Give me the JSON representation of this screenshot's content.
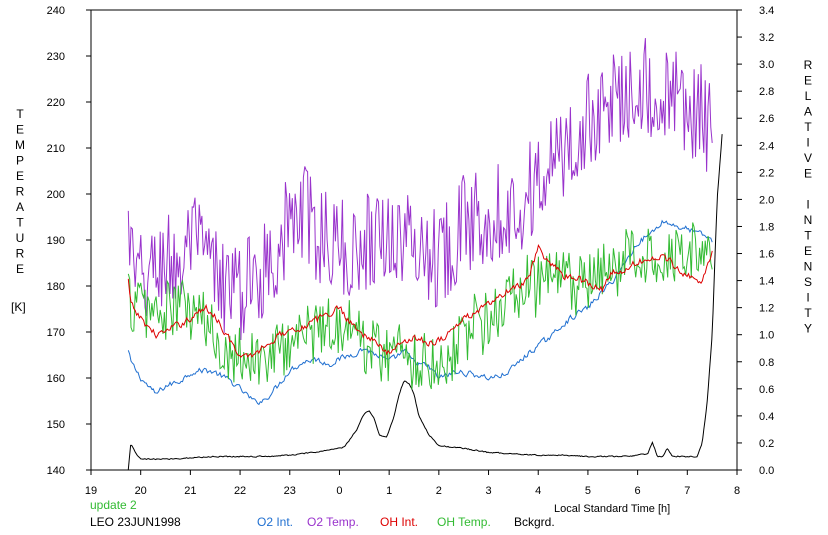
{
  "chart_data": {
    "type": "line",
    "xlabel": "Local Standard Time [h]",
    "ylabel_left": "TEMPERATURE",
    "ylabel_left_unit": "[K]",
    "ylabel_right": "RELATIVE INTENSITY",
    "x_range": [
      19,
      32
    ],
    "x_tick_values": [
      19,
      20,
      21,
      22,
      23,
      24,
      25,
      26,
      27,
      28,
      29,
      30,
      31,
      32
    ],
    "x_tick_labels": [
      "19",
      "20",
      "21",
      "22",
      "23",
      "0",
      "1",
      "2",
      "3",
      "4",
      "5",
      "6",
      "7",
      "8"
    ],
    "ylim_left": [
      140,
      240
    ],
    "y_left_ticks": [
      "140",
      "150",
      "160",
      "170",
      "180",
      "190",
      "200",
      "210",
      "220",
      "230",
      "240"
    ],
    "ylim_right": [
      0,
      3.4
    ],
    "y_right_ticks": [
      "0.0",
      "0.2",
      "0.4",
      "0.6",
      "0.8",
      "1.0",
      "1.2",
      "1.4",
      "1.6",
      "1.8",
      "2.0",
      "2.2",
      "2.4",
      "2.6",
      "2.8",
      "3.0",
      "3.2",
      "3.4"
    ],
    "grid": false,
    "series": [
      {
        "name": "O2 Int.",
        "color": "#1f6fd0",
        "axis": "right",
        "noise": 0.02,
        "x": [
          19.75,
          19.8,
          20.0,
          20.3,
          20.5,
          20.8,
          21.0,
          21.3,
          21.5,
          21.8,
          22.0,
          22.3,
          22.5,
          22.8,
          23.0,
          23.3,
          23.5,
          23.8,
          24.0,
          24.3,
          24.5,
          24.8,
          25.0,
          25.3,
          25.5,
          25.8,
          26.0,
          26.3,
          26.5,
          26.8,
          27.0,
          27.3,
          27.5,
          27.8,
          28.0,
          28.3,
          28.5,
          28.8,
          29.0,
          29.3,
          29.5,
          29.8,
          30.0,
          30.3,
          30.5,
          30.8,
          31.0,
          31.3,
          31.5
        ],
        "y": [
          0.88,
          0.8,
          0.68,
          0.56,
          0.62,
          0.66,
          0.72,
          0.74,
          0.72,
          0.66,
          0.6,
          0.5,
          0.52,
          0.64,
          0.74,
          0.8,
          0.82,
          0.78,
          0.82,
          0.86,
          0.9,
          0.84,
          0.8,
          0.88,
          0.8,
          0.76,
          0.68,
          0.72,
          0.72,
          0.7,
          0.68,
          0.7,
          0.76,
          0.86,
          0.92,
          1.0,
          1.08,
          1.16,
          1.2,
          1.32,
          1.4,
          1.56,
          1.68,
          1.76,
          1.84,
          1.8,
          1.78,
          1.74,
          1.7
        ]
      },
      {
        "name": "O2 Temp.",
        "color": "#9933cc",
        "axis": "left",
        "noise": 7,
        "x": [
          19.75,
          19.9,
          20.2,
          20.5,
          20.8,
          21.0,
          21.3,
          21.5,
          21.8,
          22.0,
          22.3,
          22.5,
          22.8,
          23.0,
          23.3,
          23.5,
          23.8,
          24.0,
          24.3,
          24.5,
          24.8,
          25.0,
          25.3,
          25.5,
          25.8,
          26.0,
          26.3,
          26.5,
          26.8,
          27.0,
          27.3,
          27.5,
          27.8,
          28.0,
          28.3,
          28.5,
          28.8,
          29.0,
          29.3,
          29.5,
          29.8,
          30.0,
          30.3,
          30.5,
          30.8,
          31.0,
          31.3,
          31.5
        ],
        "y": [
          192,
          180,
          182,
          186,
          184,
          190,
          186,
          182,
          180,
          178,
          182,
          184,
          190,
          193,
          196,
          192,
          190,
          188,
          186,
          190,
          192,
          191,
          190,
          189,
          188,
          186,
          191,
          193,
          195,
          196,
          197,
          196,
          200,
          203,
          206,
          209,
          212,
          215,
          219,
          220,
          223,
          226,
          221,
          221,
          220,
          219,
          217,
          212
        ]
      },
      {
        "name": "OH Int.",
        "color": "#dd0000",
        "axis": "right",
        "noise": 0.025,
        "x": [
          19.75,
          19.8,
          20.0,
          20.3,
          20.5,
          20.8,
          21.0,
          21.3,
          21.5,
          21.8,
          22.0,
          22.3,
          22.5,
          22.8,
          23.0,
          23.3,
          23.5,
          23.8,
          24.0,
          24.3,
          24.5,
          24.8,
          25.0,
          25.3,
          25.5,
          25.8,
          26.0,
          26.3,
          26.5,
          26.8,
          27.0,
          27.3,
          27.5,
          27.8,
          28.0,
          28.3,
          28.5,
          28.8,
          29.0,
          29.3,
          29.5,
          29.8,
          30.0,
          30.3,
          30.5,
          30.8,
          31.0,
          31.3,
          31.5
        ],
        "y": [
          1.4,
          1.22,
          1.12,
          1.0,
          1.02,
          1.08,
          1.12,
          1.2,
          1.14,
          0.96,
          0.82,
          0.86,
          0.92,
          1.0,
          1.04,
          1.06,
          1.1,
          1.16,
          1.2,
          1.06,
          1.0,
          0.92,
          0.86,
          0.96,
          0.98,
          0.94,
          0.96,
          1.04,
          1.12,
          1.18,
          1.22,
          1.3,
          1.34,
          1.4,
          1.64,
          1.5,
          1.44,
          1.42,
          1.38,
          1.34,
          1.46,
          1.48,
          1.54,
          1.56,
          1.58,
          1.5,
          1.44,
          1.4,
          1.6
        ]
      },
      {
        "name": "OH Temp.",
        "color": "#33bb33",
        "axis": "left",
        "noise": 5,
        "x": [
          19.75,
          19.8,
          20.0,
          20.3,
          20.5,
          20.8,
          21.0,
          21.3,
          21.5,
          21.8,
          22.0,
          22.3,
          22.5,
          22.8,
          23.0,
          23.3,
          23.5,
          23.8,
          24.0,
          24.3,
          24.5,
          24.8,
          25.0,
          25.3,
          25.5,
          25.8,
          26.0,
          26.3,
          26.5,
          26.8,
          27.0,
          27.3,
          27.5,
          27.8,
          28.0,
          28.3,
          28.5,
          28.8,
          29.0,
          29.3,
          29.5,
          29.8,
          30.0,
          30.3,
          30.5,
          30.8,
          31.0,
          31.3,
          31.5
        ],
        "y": [
          178,
          176,
          176,
          174,
          174,
          176,
          174,
          172,
          168,
          166,
          166,
          164,
          164,
          166,
          168,
          170,
          170,
          172,
          172,
          170,
          168,
          166,
          166,
          166,
          164,
          164,
          163,
          166,
          170,
          172,
          172,
          176,
          178,
          180,
          180,
          182,
          181,
          180,
          180,
          182,
          184,
          186,
          187,
          186,
          188,
          188,
          188,
          187,
          186
        ]
      },
      {
        "name": "Bckgrd.",
        "color": "#000000",
        "axis": "right",
        "noise": 0.004,
        "x": [
          19.75,
          19.8,
          19.9,
          20.0,
          20.5,
          21.0,
          21.5,
          22.0,
          22.5,
          23.0,
          23.5,
          23.8,
          24.0,
          24.1,
          24.2,
          24.35,
          24.5,
          24.6,
          24.7,
          24.8,
          24.95,
          25.1,
          25.2,
          25.3,
          25.4,
          25.5,
          25.6,
          25.8,
          26.0,
          26.5,
          27.0,
          27.5,
          28.0,
          28.5,
          29.0,
          29.3,
          29.5,
          29.8,
          30.0,
          30.2,
          30.3,
          30.4,
          30.5,
          30.6,
          30.7,
          30.8,
          31.0,
          31.2,
          31.3,
          31.4,
          31.5,
          31.6,
          31.7
        ],
        "y": [
          0.0,
          0.2,
          0.12,
          0.08,
          0.08,
          0.09,
          0.1,
          0.1,
          0.1,
          0.11,
          0.13,
          0.15,
          0.16,
          0.17,
          0.22,
          0.3,
          0.42,
          0.44,
          0.38,
          0.26,
          0.24,
          0.4,
          0.56,
          0.66,
          0.64,
          0.56,
          0.4,
          0.26,
          0.18,
          0.16,
          0.13,
          0.12,
          0.11,
          0.11,
          0.1,
          0.1,
          0.1,
          0.1,
          0.11,
          0.12,
          0.2,
          0.1,
          0.1,
          0.16,
          0.1,
          0.1,
          0.1,
          0.1,
          0.2,
          0.5,
          1.0,
          2.0,
          2.48
        ]
      }
    ]
  },
  "footer": {
    "update_label": "update 2",
    "update_color": "#33bb33",
    "station_date": "LEO 23JUN1998"
  }
}
